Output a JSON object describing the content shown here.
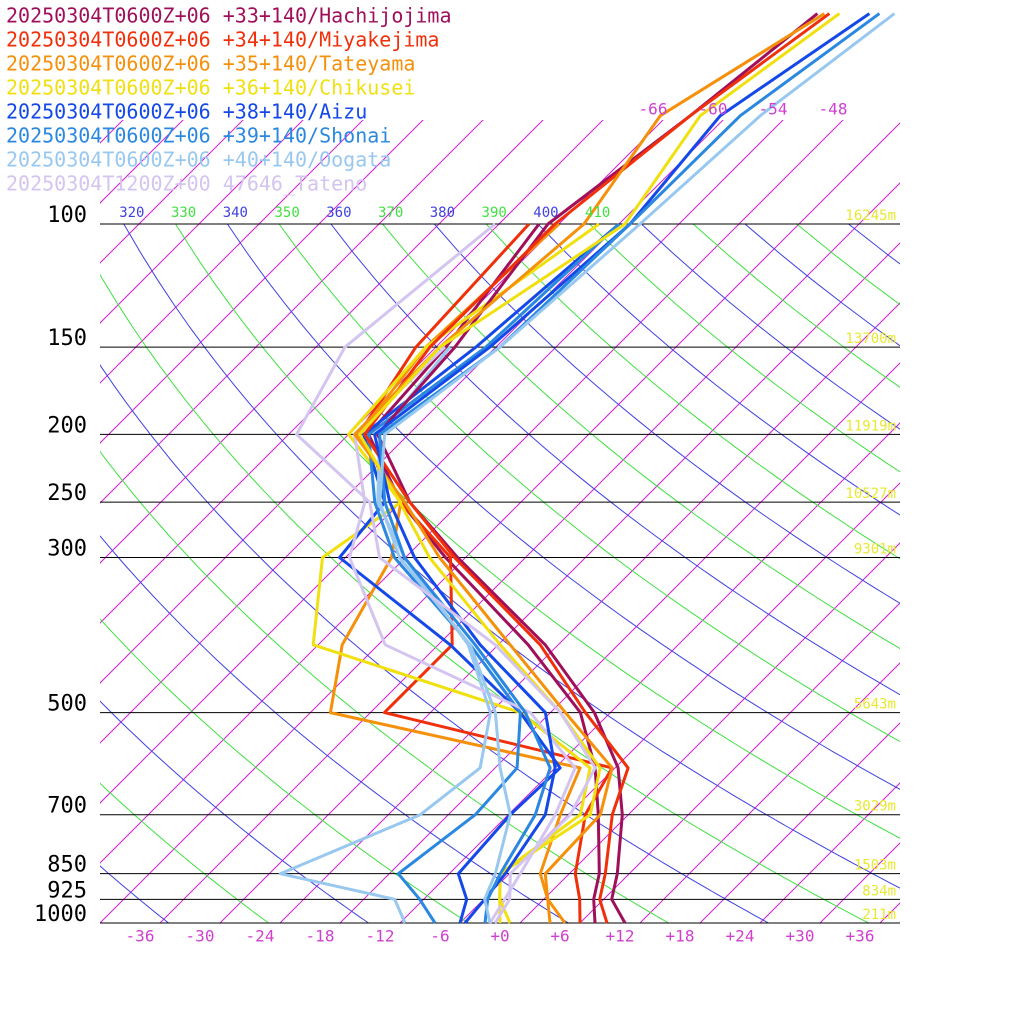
{
  "chart_data": {
    "type": "skewt",
    "ylim": [
      1000,
      100
    ],
    "xlim": [
      -40,
      40
    ],
    "log_y": true,
    "yticks": [
      100,
      150,
      200,
      250,
      300,
      500,
      700,
      850,
      925,
      1000
    ],
    "height_labels": [
      "16245m",
      "13700m",
      "11919m",
      "10527m",
      "9301m",
      "5643m",
      "3029m",
      "1503m",
      "834m",
      "211m"
    ],
    "xticks": [
      -36,
      -30,
      -24,
      -18,
      -12,
      -6,
      {
        "value": 0,
        "label": "+0"
      },
      {
        "value": 6,
        "label": "+6"
      },
      {
        "value": 12,
        "label": "+12"
      },
      {
        "value": 18,
        "label": "+18"
      },
      {
        "value": 24,
        "label": "+24"
      },
      {
        "value": 30,
        "label": "+30"
      },
      {
        "value": 36,
        "label": "+36"
      }
    ],
    "top_isotherm_labels": [
      -66,
      -60,
      -54,
      -48
    ],
    "theta_labels": [
      320,
      330,
      340,
      350,
      360,
      370,
      380,
      390,
      400,
      410
    ],
    "levels": [
      1000,
      925,
      850,
      700,
      600,
      500,
      400,
      300,
      250,
      200,
      150,
      100,
      70,
      50
    ],
    "series": [
      {
        "name": "20250304T0600Z+06 +33+140/Hachijojima",
        "color": "#a0105a",
        "temperature": [
          12.5,
          8.8,
          6.8,
          1.4,
          -3.7,
          -11.6,
          -23.3,
          -40.8,
          -51.1,
          -61.1,
          -62.1,
          -65.1,
          -61.7,
          -59.2
        ],
        "dewpoint": [
          9.5,
          7,
          5,
          -1,
          -6,
          -13,
          -25,
          -42,
          -52,
          -62,
          -63,
          -66,
          null,
          null
        ]
      },
      {
        "name": "20250304T0600Z+06 +34+140/Miyakejima",
        "color": "#f0300a",
        "temperature": [
          10.7,
          7.6,
          5.6,
          0.4,
          -2.7,
          -12.5,
          -23.8,
          -41.1,
          -51.1,
          -62.4,
          -64.6,
          -64.4,
          -61.7,
          -58
        ],
        "dewpoint": [
          8,
          5.6,
          2.6,
          -2.3,
          -4.3,
          -32.6,
          -32.6,
          -41.5,
          -52,
          -63,
          -66,
          -67,
          null,
          null
        ]
      },
      {
        "name": "20250304T0600Z+06 +35+140/Tateyama",
        "color": "#f5900a",
        "temperature": [
          6.5,
          2.4,
          -0.4,
          -0.8,
          -4.3,
          -14.5,
          -26.8,
          -42.6,
          -51.6,
          -63.4,
          -63.6,
          -61.5,
          -64.7,
          -58.5
        ],
        "dewpoint": [
          5,
          2.4,
          -0.9,
          -4.8,
          -7.5,
          -38,
          -43.6,
          -47.4,
          -52,
          -63,
          -65,
          -64,
          null,
          null
        ]
      },
      {
        "name": "20250304T0600Z+06 +36+140/Chikusei",
        "color": "#f0e010",
        "temperature": [
          1,
          -2.4,
          -4.9,
          -1.8,
          -5.5,
          -15,
          -27.8,
          -43.6,
          -52.1,
          -62.9,
          -63.6,
          -57.4,
          -60.7,
          -57
        ],
        "dewpoint": [
          0,
          -2.4,
          -4.9,
          -2.8,
          -6.5,
          -19,
          -46.5,
          -54.3,
          -52,
          -64,
          -65,
          -60,
          null,
          null
        ]
      },
      {
        "name": "20250304T0600Z+06 +38+140/Aizu",
        "color": "#1448e8",
        "temperature": [
          -3.5,
          -3.9,
          -4.4,
          -6.3,
          -10,
          -16.5,
          -29.8,
          -45.1,
          -53.1,
          -61.4,
          -58.6,
          -56.9,
          -58.7,
          -54
        ],
        "dewpoint": [
          -4,
          -5.7,
          -9.1,
          -9.8,
          -9.5,
          -19,
          -32.8,
          -52.6,
          -53.6,
          -62.5,
          -60,
          -58,
          null,
          null
        ]
      },
      {
        "name": "20250304T0600Z+06 +39+140/Shonai",
        "color": "#2a88e0",
        "temperature": [
          -1.5,
          -3.6,
          -4.9,
          -7.3,
          -10.5,
          -18.5,
          -30.3,
          -46.1,
          -53.6,
          -60.9,
          -57.6,
          -56.9,
          -56.7,
          -53
        ],
        "dewpoint": [
          -6.5,
          -10.4,
          -15.1,
          -13.3,
          -13.8,
          -19,
          -30.8,
          -47.1,
          -54.6,
          -62,
          -59,
          -58,
          null,
          null
        ]
      },
      {
        "name": "20250304T0600Z+06 +40+140/Oogata",
        "color": "#98c8f0",
        "temperature": [
          -1,
          -3.9,
          -5.4,
          -9.8,
          -15.5,
          -21.5,
          -30.8,
          -46.6,
          -54.1,
          -60.4,
          -57.6,
          -55.9,
          -54.7,
          -51.5
        ],
        "dewpoint": [
          -9.5,
          -12.9,
          -26.9,
          -18.8,
          -17.5,
          -22,
          -31,
          -46.1,
          -54.3,
          -60.9,
          -62.6,
          null,
          null,
          null
        ]
      },
      {
        "name": "20250304T1200Z+00 47646_Tateno",
        "color": "#d4c4f0",
        "temperature": [
          -0.5,
          -1.4,
          -3.9,
          -3.8,
          -6,
          -15,
          -28.3,
          -48.6,
          -55.1,
          -69.2,
          -73.1,
          -70.4,
          null,
          null
        ],
        "dewpoint": [
          -1,
          -1.9,
          -2.9,
          -5.3,
          -8,
          -18,
          -39.3,
          -51.6,
          -55.6,
          -63.4,
          -63.1,
          null,
          null,
          null
        ]
      }
    ]
  }
}
